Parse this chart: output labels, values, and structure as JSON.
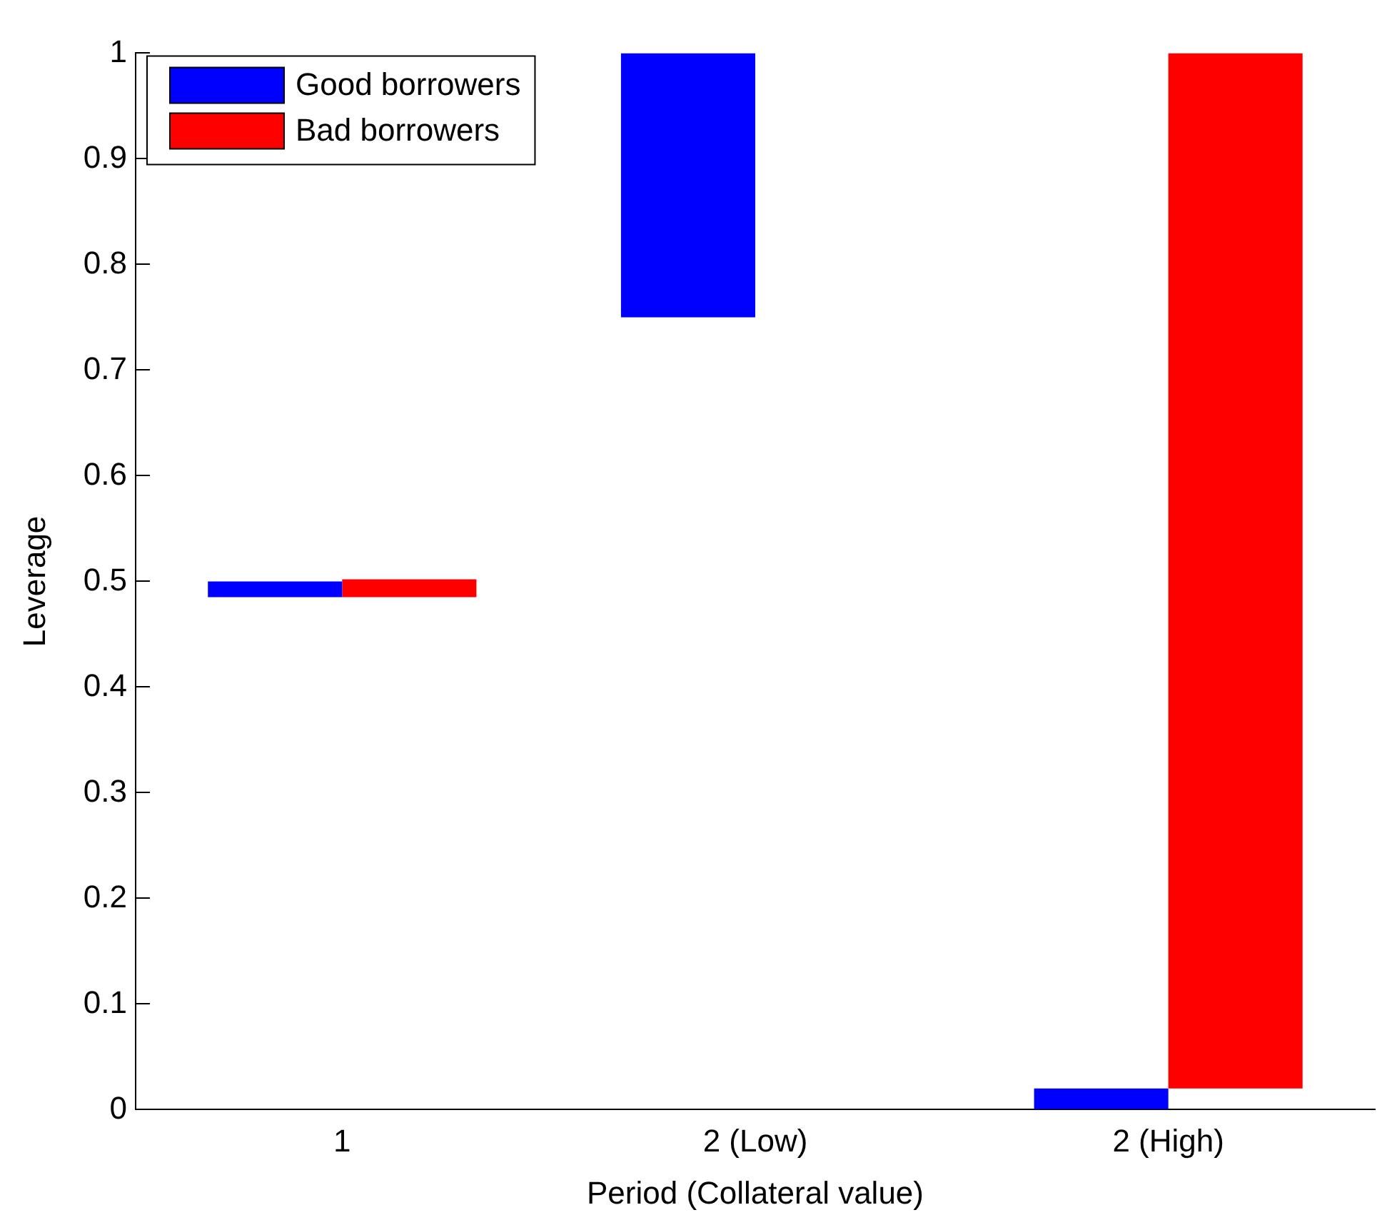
{
  "chart_data": {
    "type": "bar",
    "xlabel": "Period (Collateral value)",
    "ylabel": "Leverage",
    "categories": [
      "1",
      "2 (Low)",
      "2 (High)"
    ],
    "series": [
      {
        "name": "Good borrowers",
        "color": "#0000ff",
        "values": [
          0.015,
          0.25,
          0.02
        ],
        "base": [
          0.485,
          0.75,
          0
        ]
      },
      {
        "name": "Bad borrowers",
        "color": "#ff0000",
        "values": [
          0.017,
          null,
          0.98
        ],
        "base": [
          0.485,
          null,
          0.02
        ]
      }
    ],
    "ylim": [
      0,
      1
    ],
    "yticks": [
      0,
      0.1,
      0.2,
      0.3,
      0.4,
      0.5,
      0.6,
      0.7,
      0.8,
      0.9,
      1
    ],
    "grid": false,
    "legend": "top left"
  }
}
